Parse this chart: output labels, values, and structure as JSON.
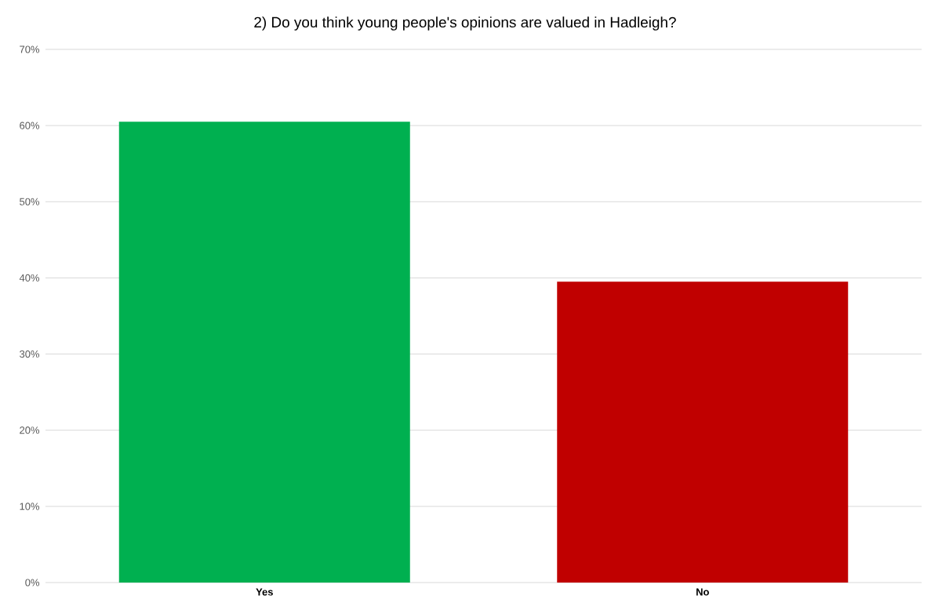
{
  "chart_data": {
    "type": "bar",
    "title": "2) Do you think young people's opinions are valued in Hadleigh?",
    "categories": [
      "Yes",
      "No"
    ],
    "values": [
      60.5,
      39.5
    ],
    "colors": [
      "#00b050",
      "#c00000"
    ],
    "ylim": [
      0,
      70
    ],
    "yticks": [
      {
        "value": 0,
        "label": "0%"
      },
      {
        "value": 10,
        "label": "10%"
      },
      {
        "value": 20,
        "label": "20%"
      },
      {
        "value": 30,
        "label": "30%"
      },
      {
        "value": 40,
        "label": "40%"
      },
      {
        "value": 50,
        "label": "50%"
      },
      {
        "value": 60,
        "label": "60%"
      },
      {
        "value": 70,
        "label": "70%"
      }
    ],
    "grid": "y"
  }
}
